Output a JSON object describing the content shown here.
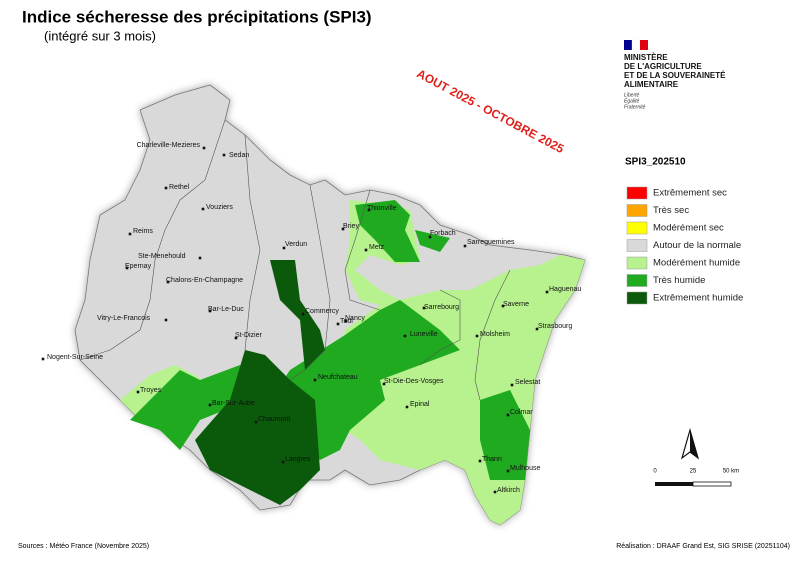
{
  "header": {
    "title": "Indice sécheresse des précipitations (SPI3)",
    "subtitle": "(intégré sur 3 mois)",
    "period": "AOUT 2025 - OCTOBRE 2025"
  },
  "ministry": {
    "lines": [
      "MINISTÈRE",
      "DE L'AGRICULTURE",
      "ET DE LA SOUVERAINETÉ",
      "ALIMENTAIRE"
    ],
    "motto": [
      "Liberté",
      "Égalité",
      "Fraternité"
    ]
  },
  "legend": {
    "title": "SPI3_202510",
    "items": [
      {
        "label": "Extrêmement sec",
        "color": "#ff0000"
      },
      {
        "label": "Très sec",
        "color": "#ffa500"
      },
      {
        "label": "Modérément sec",
        "color": "#ffff00"
      },
      {
        "label": "Autour de la normale",
        "color": "#d9d9d9"
      },
      {
        "label": "Modérément humide",
        "color": "#b8f28f"
      },
      {
        "label": "Très humide",
        "color": "#1faa1f"
      },
      {
        "label": "Extrêmement humide",
        "color": "#0b5a0b"
      }
    ]
  },
  "map": {
    "cities": [
      "Charleville-Mezieres",
      "Sedan",
      "Rethel",
      "Vouziers",
      "Reims",
      "Ste-Menehould",
      "Verdun",
      "Briey",
      "Thionville",
      "Metz",
      "Forbach",
      "Sarreguemines",
      "Epernay",
      "Chalons-En-Champagne",
      "Bar-Le-Duc",
      "Commercy",
      "Toul",
      "Nancy",
      "Haguenau",
      "Saverne",
      "Sarrebourg",
      "Strasbourg",
      "Vitry-Le-Francois",
      "St-Dizier",
      "Luneville",
      "Molsheim",
      "Nogent-Sur-Seine",
      "Neufchateau",
      "St-Die-Des-Vosges",
      "Selestat",
      "Troyes",
      "Bar-Sur-Aube",
      "Epinal",
      "Colmar",
      "Chaumont",
      "Langres",
      "Thann",
      "Mulhouse",
      "Altkirch"
    ],
    "scale_labels": [
      "0",
      "25",
      "50 km"
    ]
  },
  "footer": {
    "sources": "Sources : Météo France (Novembre 2025)",
    "credit": "Réalisation : DRAAF Grand Est, SIG SRISE (20251104)"
  }
}
